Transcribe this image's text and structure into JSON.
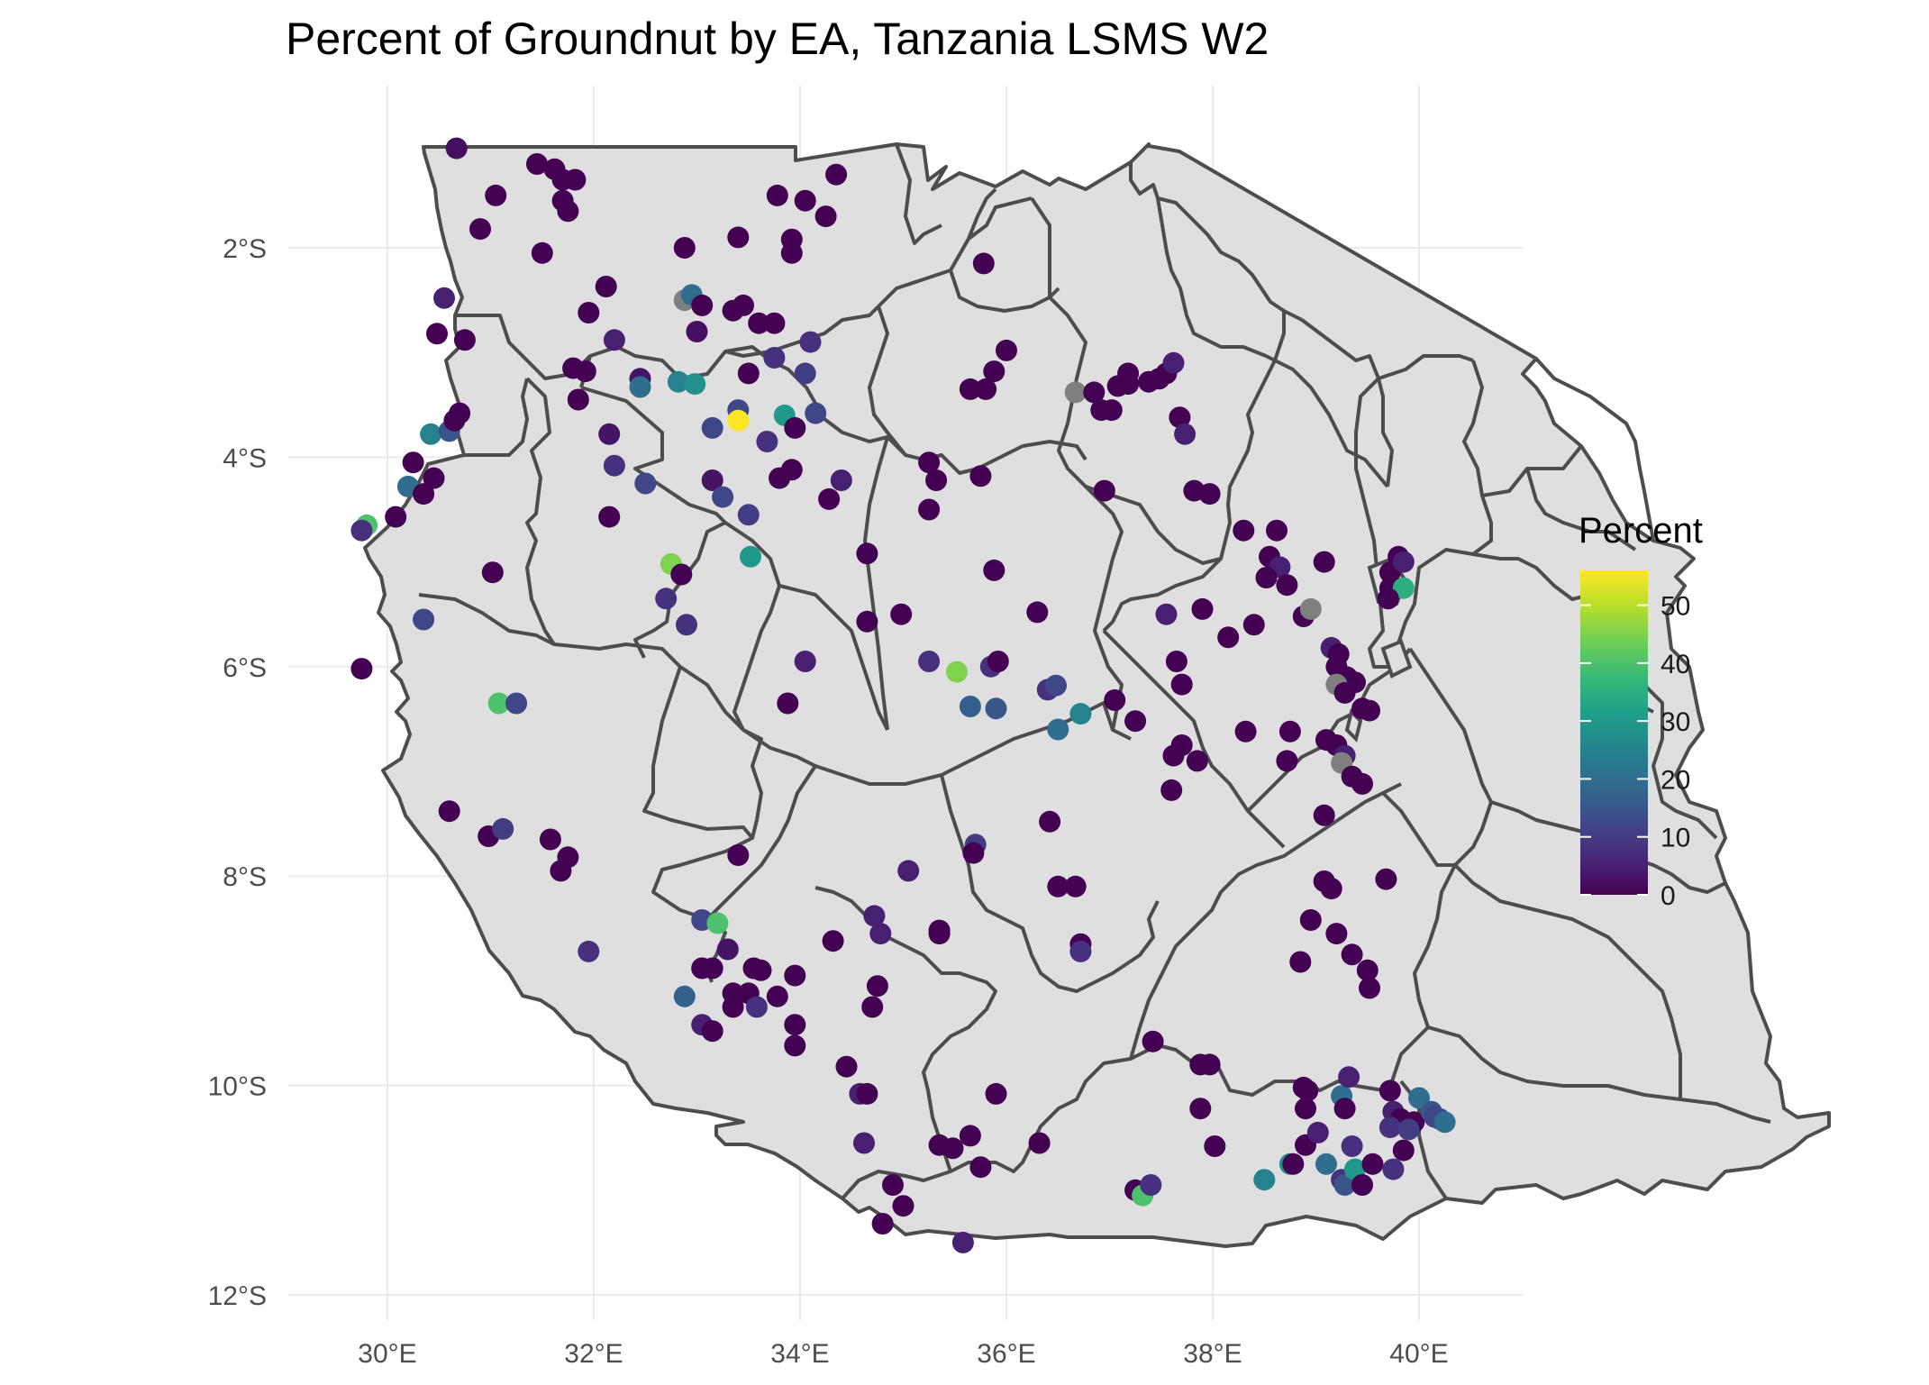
{
  "title": "Percent of Groundnut by EA, Tanzania LSMS W2",
  "x_ticks": [
    "30°E",
    "32°E",
    "34°E",
    "36°E",
    "38°E",
    "40°E"
  ],
  "y_ticks": [
    "2°S",
    "4°S",
    "6°S",
    "8°S",
    "10°S",
    "12°S"
  ],
  "legend": {
    "title": "Percent",
    "ticks": [
      "50",
      "40",
      "30",
      "20",
      "10",
      "0"
    ],
    "colors": [
      "#440154",
      "#482878",
      "#3e4989",
      "#31688e",
      "#26828e",
      "#1f9e89",
      "#35b779",
      "#6ece58",
      "#b5de2b",
      "#fde725"
    ]
  },
  "chart_data": {
    "type": "scatter",
    "title": "Percent of Groundnut by EA, Tanzania LSMS W2",
    "xlabel": "",
    "ylabel": "",
    "x_unit": "degrees longitude (E)",
    "y_unit": "degrees latitude (S)",
    "xlim": [
      29.0,
      41.0
    ],
    "ylim": [
      -12.3,
      -0.6
    ],
    "color_scale": "viridis",
    "color_range": [
      0,
      56
    ],
    "missing_color": "#7f7f7f",
    "points": [
      [
        30.67,
        -1.05,
        2
      ],
      [
        31.05,
        -1.5,
        0
      ],
      [
        30.9,
        -1.82,
        0
      ],
      [
        31.45,
        -1.2,
        0
      ],
      [
        31.62,
        -1.25,
        0
      ],
      [
        31.7,
        -1.35,
        0
      ],
      [
        31.82,
        -1.35,
        0
      ],
      [
        31.7,
        -1.55,
        0
      ],
      [
        31.75,
        -1.65,
        0
      ],
      [
        31.5,
        -2.05,
        0
      ],
      [
        30.55,
        -2.48,
        5
      ],
      [
        30.48,
        -2.82,
        0
      ],
      [
        30.75,
        -2.88,
        0
      ],
      [
        31.95,
        -2.62,
        0
      ],
      [
        32.12,
        -2.37,
        0
      ],
      [
        31.8,
        -3.15,
        0
      ],
      [
        31.92,
        -3.18,
        0
      ],
      [
        32.2,
        -2.88,
        5
      ],
      [
        32.45,
        -3.25,
        3
      ],
      [
        32.45,
        -3.33,
        20
      ],
      [
        32.88,
        -2.0,
        0
      ],
      [
        32.88,
        -2.5,
        null
      ],
      [
        32.95,
        -2.45,
        20
      ],
      [
        33.05,
        -2.55,
        0
      ],
      [
        33.0,
        -2.8,
        2
      ],
      [
        33.35,
        -2.6,
        0
      ],
      [
        33.45,
        -2.55,
        0
      ],
      [
        33.6,
        -2.72,
        0
      ],
      [
        33.75,
        -2.72,
        0
      ],
      [
        33.4,
        -1.9,
        0
      ],
      [
        33.78,
        -1.5,
        0
      ],
      [
        33.92,
        -1.92,
        0
      ],
      [
        33.92,
        -2.05,
        0
      ],
      [
        34.05,
        -1.55,
        0
      ],
      [
        34.25,
        -1.7,
        0
      ],
      [
        34.35,
        -1.3,
        0
      ],
      [
        33.5,
        -3.2,
        0
      ],
      [
        33.75,
        -3.05,
        8
      ],
      [
        34.1,
        -2.9,
        8
      ],
      [
        34.05,
        -3.2,
        10
      ],
      [
        32.82,
        -3.28,
        25
      ],
      [
        32.98,
        -3.3,
        28
      ],
      [
        33.4,
        -3.55,
        12
      ],
      [
        33.4,
        -3.65,
        56
      ],
      [
        33.15,
        -3.72,
        12
      ],
      [
        33.85,
        -3.6,
        30
      ],
      [
        34.15,
        -3.58,
        12
      ],
      [
        33.68,
        -3.85,
        8
      ],
      [
        33.95,
        -3.72,
        0
      ],
      [
        31.85,
        -3.45,
        0
      ],
      [
        32.15,
        -3.78,
        3
      ],
      [
        32.2,
        -4.08,
        8
      ],
      [
        32.5,
        -4.25,
        12
      ],
      [
        33.15,
        -4.22,
        3
      ],
      [
        33.25,
        -4.38,
        12
      ],
      [
        33.5,
        -4.55,
        10
      ],
      [
        33.8,
        -4.2,
        0
      ],
      [
        33.92,
        -4.12,
        0
      ],
      [
        34.4,
        -4.22,
        5
      ],
      [
        34.28,
        -4.4,
        0
      ],
      [
        32.15,
        -4.57,
        0
      ],
      [
        32.75,
        -5.02,
        45
      ],
      [
        32.85,
        -5.12,
        0
      ],
      [
        32.7,
        -5.35,
        8
      ],
      [
        32.9,
        -5.6,
        8
      ],
      [
        33.52,
        -4.95,
        30
      ],
      [
        34.65,
        -4.92,
        0
      ],
      [
        34.65,
        -5.57,
        0
      ],
      [
        34.98,
        -5.5,
        0
      ],
      [
        34.05,
        -5.95,
        5
      ],
      [
        33.88,
        -6.35,
        0
      ],
      [
        35.25,
        -4.05,
        0
      ],
      [
        35.32,
        -4.22,
        0
      ],
      [
        35.25,
        -4.5,
        0
      ],
      [
        35.75,
        -4.18,
        0
      ],
      [
        35.78,
        -2.15,
        0
      ],
      [
        35.65,
        -3.35,
        0
      ],
      [
        35.8,
        -3.35,
        0
      ],
      [
        35.88,
        -3.18,
        0
      ],
      [
        36.0,
        -2.98,
        0
      ],
      [
        35.88,
        -5.08,
        0
      ],
      [
        36.3,
        -5.48,
        0
      ],
      [
        35.85,
        -6.0,
        8
      ],
      [
        35.92,
        -5.95,
        0
      ],
      [
        35.25,
        -5.95,
        8
      ],
      [
        35.52,
        -6.05,
        45
      ],
      [
        35.65,
        -6.38,
        17
      ],
      [
        35.9,
        -6.4,
        15
      ],
      [
        36.4,
        -6.22,
        8
      ],
      [
        36.48,
        -6.18,
        12
      ],
      [
        36.5,
        -6.6,
        20
      ],
      [
        36.72,
        -6.45,
        25
      ],
      [
        36.67,
        -3.38,
        null
      ],
      [
        36.85,
        -3.38,
        0
      ],
      [
        36.92,
        -3.55,
        0
      ],
      [
        37.02,
        -3.55,
        0
      ],
      [
        37.08,
        -3.32,
        0
      ],
      [
        37.18,
        -3.3,
        0
      ],
      [
        37.18,
        -3.2,
        0
      ],
      [
        37.38,
        -3.28,
        0
      ],
      [
        37.48,
        -3.25,
        0
      ],
      [
        37.55,
        -3.2,
        0
      ],
      [
        37.62,
        -3.1,
        5
      ],
      [
        37.68,
        -3.62,
        0
      ],
      [
        37.73,
        -3.78,
        5
      ],
      [
        36.95,
        -4.32,
        0
      ],
      [
        37.82,
        -4.32,
        0
      ],
      [
        37.97,
        -4.35,
        0
      ],
      [
        38.3,
        -4.7,
        0
      ],
      [
        38.62,
        -4.7,
        0
      ],
      [
        38.55,
        -4.95,
        0
      ],
      [
        38.65,
        -5.05,
        5
      ],
      [
        38.52,
        -5.15,
        0
      ],
      [
        38.72,
        -5.22,
        0
      ],
      [
        38.88,
        -5.52,
        0
      ],
      [
        38.95,
        -5.45,
        null
      ],
      [
        39.08,
        -5.0,
        0
      ],
      [
        37.55,
        -5.5,
        5
      ],
      [
        37.9,
        -5.45,
        0
      ],
      [
        38.15,
        -5.72,
        0
      ],
      [
        38.4,
        -5.6,
        0
      ],
      [
        37.65,
        -5.95,
        0
      ],
      [
        37.7,
        -6.17,
        0
      ],
      [
        37.05,
        -6.32,
        0
      ],
      [
        37.25,
        -6.52,
        0
      ],
      [
        37.7,
        -6.75,
        0
      ],
      [
        37.62,
        -6.85,
        0
      ],
      [
        37.85,
        -6.9,
        0
      ],
      [
        37.6,
        -7.18,
        0
      ],
      [
        38.32,
        -6.62,
        0
      ],
      [
        38.75,
        -6.62,
        0
      ],
      [
        38.72,
        -6.9,
        0
      ],
      [
        39.15,
        -5.82,
        5
      ],
      [
        39.22,
        -5.88,
        0
      ],
      [
        39.2,
        -6.0,
        0
      ],
      [
        39.3,
        -6.1,
        0
      ],
      [
        39.38,
        -6.15,
        0
      ],
      [
        39.2,
        -6.17,
        null
      ],
      [
        39.28,
        -6.25,
        0
      ],
      [
        39.45,
        -6.4,
        0
      ],
      [
        39.52,
        -6.42,
        0
      ],
      [
        39.1,
        -6.7,
        0
      ],
      [
        39.2,
        -6.75,
        0
      ],
      [
        39.28,
        -6.85,
        5
      ],
      [
        39.25,
        -6.92,
        null
      ],
      [
        39.35,
        -7.05,
        0
      ],
      [
        39.45,
        -7.12,
        0
      ],
      [
        39.08,
        -7.42,
        0
      ],
      [
        39.72,
        -5.1,
        0
      ],
      [
        39.8,
        -4.95,
        0
      ],
      [
        39.85,
        -5.0,
        5
      ],
      [
        39.72,
        -5.25,
        0
      ],
      [
        39.85,
        -5.25,
        35
      ],
      [
        39.7,
        -5.35,
        0
      ],
      [
        29.8,
        -4.65,
        40
      ],
      [
        29.75,
        -4.7,
        8
      ],
      [
        30.08,
        -4.57,
        0
      ],
      [
        30.2,
        -4.28,
        20
      ],
      [
        30.35,
        -4.35,
        0
      ],
      [
        30.45,
        -4.2,
        0
      ],
      [
        30.25,
        -4.05,
        0
      ],
      [
        30.42,
        -3.78,
        25
      ],
      [
        30.6,
        -3.75,
        15
      ],
      [
        30.65,
        -3.65,
        0
      ],
      [
        30.7,
        -3.58,
        0
      ],
      [
        31.02,
        -5.1,
        0
      ],
      [
        30.35,
        -5.55,
        12
      ],
      [
        29.75,
        -6.02,
        0
      ],
      [
        31.08,
        -6.35,
        40
      ],
      [
        31.25,
        -6.35,
        12
      ],
      [
        30.6,
        -7.38,
        0
      ],
      [
        30.98,
        -7.62,
        0
      ],
      [
        31.12,
        -7.55,
        10
      ],
      [
        31.58,
        -7.65,
        0
      ],
      [
        31.75,
        -7.82,
        0
      ],
      [
        31.68,
        -7.95,
        0
      ],
      [
        31.95,
        -8.72,
        8
      ],
      [
        33.4,
        -7.8,
        0
      ],
      [
        33.05,
        -8.42,
        12
      ],
      [
        33.2,
        -8.45,
        40
      ],
      [
        33.3,
        -8.7,
        3
      ],
      [
        33.05,
        -8.88,
        0
      ],
      [
        33.15,
        -8.88,
        0
      ],
      [
        32.88,
        -9.15,
        17
      ],
      [
        33.35,
        -9.12,
        0
      ],
      [
        33.5,
        -9.12,
        0
      ],
      [
        33.55,
        -8.88,
        0
      ],
      [
        33.62,
        -8.9,
        0
      ],
      [
        33.78,
        -9.15,
        0
      ],
      [
        33.95,
        -8.95,
        0
      ],
      [
        33.58,
        -9.25,
        8
      ],
      [
        33.35,
        -9.25,
        0
      ],
      [
        33.05,
        -9.42,
        5
      ],
      [
        33.15,
        -9.48,
        0
      ],
      [
        33.95,
        -9.42,
        0
      ],
      [
        33.95,
        -9.62,
        0
      ],
      [
        34.32,
        -8.62,
        0
      ],
      [
        34.72,
        -8.38,
        5
      ],
      [
        34.78,
        -8.55,
        5
      ],
      [
        34.75,
        -9.05,
        0
      ],
      [
        34.7,
        -9.25,
        0
      ],
      [
        35.05,
        -7.95,
        5
      ],
      [
        35.35,
        -8.52,
        0
      ],
      [
        35.35,
        -8.55,
        0
      ],
      [
        35.7,
        -7.7,
        10
      ],
      [
        35.68,
        -7.78,
        0
      ],
      [
        36.42,
        -7.48,
        0
      ],
      [
        36.5,
        -8.1,
        0
      ],
      [
        36.67,
        -8.1,
        0
      ],
      [
        36.72,
        -8.65,
        0
      ],
      [
        36.72,
        -8.72,
        8
      ],
      [
        34.45,
        -9.82,
        0
      ],
      [
        34.58,
        -10.08,
        5
      ],
      [
        34.65,
        -10.08,
        0
      ],
      [
        34.62,
        -10.55,
        5
      ],
      [
        34.9,
        -10.95,
        0
      ],
      [
        35.0,
        -11.15,
        0
      ],
      [
        34.8,
        -11.32,
        0
      ],
      [
        35.35,
        -10.57,
        0
      ],
      [
        35.48,
        -10.6,
        0
      ],
      [
        35.65,
        -10.48,
        0
      ],
      [
        35.75,
        -10.78,
        0
      ],
      [
        35.9,
        -10.08,
        0
      ],
      [
        35.58,
        -11.5,
        5
      ],
      [
        36.32,
        -10.55,
        0
      ],
      [
        37.25,
        -11.0,
        0
      ],
      [
        37.32,
        -11.05,
        40
      ],
      [
        37.4,
        -10.95,
        8
      ],
      [
        37.42,
        -9.58,
        0
      ],
      [
        37.88,
        -9.8,
        0
      ],
      [
        37.97,
        -9.8,
        0
      ],
      [
        37.88,
        -10.22,
        0
      ],
      [
        38.02,
        -10.58,
        0
      ],
      [
        38.5,
        -10.9,
        25
      ],
      [
        38.75,
        -10.75,
        28
      ],
      [
        38.78,
        -10.75,
        0
      ],
      [
        39.1,
        -10.75,
        20
      ],
      [
        39.25,
        -10.9,
        8
      ],
      [
        39.28,
        -10.95,
        15
      ],
      [
        39.38,
        -10.8,
        30
      ],
      [
        39.45,
        -10.95,
        0
      ],
      [
        39.35,
        -10.58,
        8
      ],
      [
        39.55,
        -10.75,
        0
      ],
      [
        39.25,
        -10.1,
        20
      ],
      [
        39.28,
        -10.22,
        0
      ],
      [
        39.32,
        -9.92,
        5
      ],
      [
        38.88,
        -10.02,
        0
      ],
      [
        38.92,
        -10.05,
        0
      ],
      [
        38.9,
        -10.22,
        0
      ],
      [
        38.9,
        -10.57,
        0
      ],
      [
        39.02,
        -10.45,
        5
      ],
      [
        39.08,
        -8.05,
        0
      ],
      [
        39.15,
        -8.12,
        0
      ],
      [
        39.2,
        -8.55,
        0
      ],
      [
        39.35,
        -8.75,
        0
      ],
      [
        39.5,
        -8.9,
        0
      ],
      [
        39.52,
        -9.07,
        0
      ],
      [
        39.68,
        -8.03,
        0
      ],
      [
        38.95,
        -8.42,
        0
      ],
      [
        38.85,
        -8.82,
        0
      ],
      [
        39.75,
        -10.25,
        5
      ],
      [
        39.72,
        -10.05,
        0
      ],
      [
        39.82,
        -10.32,
        0
      ],
      [
        39.9,
        -10.38,
        0
      ],
      [
        39.85,
        -10.62,
        0
      ],
      [
        39.95,
        -10.35,
        0
      ],
      [
        39.72,
        -10.4,
        8
      ],
      [
        39.75,
        -10.8,
        8
      ],
      [
        39.9,
        -10.42,
        10
      ],
      [
        40.0,
        -10.12,
        20
      ],
      [
        40.12,
        -10.25,
        15
      ],
      [
        40.15,
        -10.3,
        12
      ],
      [
        40.2,
        -10.32,
        12
      ],
      [
        40.25,
        -10.35,
        20
      ]
    ]
  }
}
